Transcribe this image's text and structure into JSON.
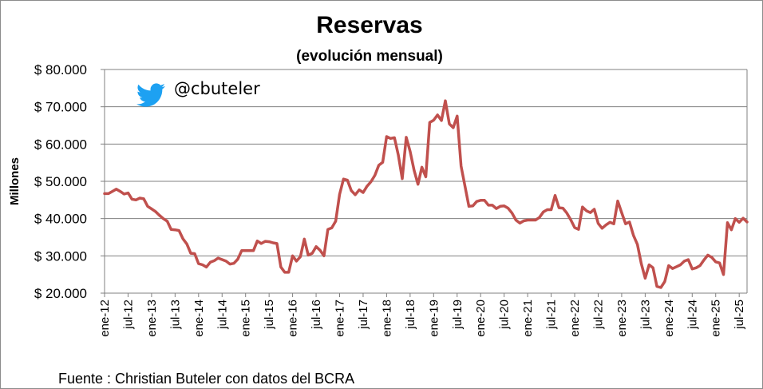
{
  "chart_data": {
    "type": "line",
    "title": "Reservas",
    "subtitle": "(evolución mensual)",
    "ylabel": "Millones",
    "ylim": [
      20000,
      80000
    ],
    "yticks": [
      20000,
      30000,
      40000,
      50000,
      60000,
      70000,
      80000
    ],
    "ytick_labels": [
      "$ 20.000",
      "$ 30.000",
      "$ 40.000",
      "$ 50.000",
      "$ 60.000",
      "$ 70.000",
      "$ 80.000"
    ],
    "xrange": [
      "2012-01",
      "2025-09"
    ],
    "xticks": [
      "2012-01",
      "2012-07",
      "2013-01",
      "2013-07",
      "2014-01",
      "2014-07",
      "2015-01",
      "2015-07",
      "2016-01",
      "2016-07",
      "2017-01",
      "2017-07",
      "2018-01",
      "2018-07",
      "2019-01",
      "2019-07",
      "2020-01",
      "2020-07",
      "2021-01",
      "2021-07",
      "2022-01",
      "2022-07",
      "2023-01",
      "2023-07",
      "2024-01",
      "2024-07",
      "2025-01",
      "2025-07"
    ],
    "xtick_labels": [
      "ene-12",
      "jul-12",
      "ene-13",
      "jul-13",
      "ene-14",
      "jul-14",
      "ene-15",
      "jul-15",
      "ene-16",
      "jul-16",
      "ene-17",
      "jul-17",
      "ene-18",
      "jul-18",
      "ene-19",
      "jul-19",
      "ene-20",
      "jul-20",
      "ene-21",
      "jul-21",
      "ene-22",
      "jul-22",
      "ene-23",
      "jul-23",
      "ene-24",
      "jul-24",
      "ene-25",
      "jul-25"
    ],
    "grid": true,
    "legend": "none",
    "series": [
      {
        "color": "#c0504d",
        "points": [
          [
            "2012-01",
            46700
          ],
          [
            "2012-02",
            46700
          ],
          [
            "2012-03",
            47300
          ],
          [
            "2012-04",
            47900
          ],
          [
            "2012-05",
            47300
          ],
          [
            "2012-06",
            46600
          ],
          [
            "2012-07",
            46900
          ],
          [
            "2012-08",
            45200
          ],
          [
            "2012-09",
            45000
          ],
          [
            "2012-10",
            45500
          ],
          [
            "2012-11",
            45300
          ],
          [
            "2012-12",
            43300
          ],
          [
            "2013-01",
            42600
          ],
          [
            "2013-02",
            41900
          ],
          [
            "2013-03",
            40900
          ],
          [
            "2013-04",
            40000
          ],
          [
            "2013-05",
            39300
          ],
          [
            "2013-06",
            37100
          ],
          [
            "2013-07",
            37000
          ],
          [
            "2013-08",
            36800
          ],
          [
            "2013-09",
            34600
          ],
          [
            "2013-10",
            33200
          ],
          [
            "2013-11",
            30700
          ],
          [
            "2013-12",
            30600
          ],
          [
            "2014-01",
            27900
          ],
          [
            "2014-02",
            27600
          ],
          [
            "2014-03",
            27000
          ],
          [
            "2014-04",
            28300
          ],
          [
            "2014-05",
            28700
          ],
          [
            "2014-06",
            29400
          ],
          [
            "2014-07",
            29000
          ],
          [
            "2014-08",
            28600
          ],
          [
            "2014-09",
            27800
          ],
          [
            "2014-10",
            28000
          ],
          [
            "2014-11",
            29100
          ],
          [
            "2014-12",
            31400
          ],
          [
            "2015-01",
            31400
          ],
          [
            "2015-02",
            31400
          ],
          [
            "2015-03",
            31400
          ],
          [
            "2015-04",
            34000
          ],
          [
            "2015-05",
            33300
          ],
          [
            "2015-06",
            33900
          ],
          [
            "2015-07",
            33800
          ],
          [
            "2015-08",
            33500
          ],
          [
            "2015-09",
            33300
          ],
          [
            "2015-10",
            27000
          ],
          [
            "2015-11",
            25600
          ],
          [
            "2015-12",
            25600
          ],
          [
            "2016-01",
            30000
          ],
          [
            "2016-02",
            28600
          ],
          [
            "2016-03",
            29800
          ],
          [
            "2016-04",
            34500
          ],
          [
            "2016-05",
            30200
          ],
          [
            "2016-06",
            30700
          ],
          [
            "2016-07",
            32500
          ],
          [
            "2016-08",
            31500
          ],
          [
            "2016-09",
            30000
          ],
          [
            "2016-10",
            37100
          ],
          [
            "2016-11",
            37500
          ],
          [
            "2016-12",
            39300
          ],
          [
            "2017-01",
            46500
          ],
          [
            "2017-02",
            50600
          ],
          [
            "2017-03",
            50300
          ],
          [
            "2017-04",
            47500
          ],
          [
            "2017-05",
            46400
          ],
          [
            "2017-06",
            47700
          ],
          [
            "2017-07",
            47000
          ],
          [
            "2017-08",
            48700
          ],
          [
            "2017-09",
            49900
          ],
          [
            "2017-10",
            51600
          ],
          [
            "2017-11",
            54300
          ],
          [
            "2017-12",
            55100
          ],
          [
            "2018-01",
            62000
          ],
          [
            "2018-02",
            61500
          ],
          [
            "2018-03",
            61700
          ],
          [
            "2018-04",
            57000
          ],
          [
            "2018-05",
            50700
          ],
          [
            "2018-06",
            61800
          ],
          [
            "2018-07",
            58000
          ],
          [
            "2018-08",
            53000
          ],
          [
            "2018-09",
            49200
          ],
          [
            "2018-10",
            53800
          ],
          [
            "2018-11",
            51200
          ],
          [
            "2018-12",
            65800
          ],
          [
            "2019-01",
            66400
          ],
          [
            "2019-02",
            67800
          ],
          [
            "2019-03",
            66300
          ],
          [
            "2019-04",
            71600
          ],
          [
            "2019-05",
            65400
          ],
          [
            "2019-06",
            64400
          ],
          [
            "2019-07",
            67500
          ],
          [
            "2019-08",
            54100
          ],
          [
            "2019-09",
            48700
          ],
          [
            "2019-10",
            43300
          ],
          [
            "2019-11",
            43400
          ],
          [
            "2019-12",
            44600
          ],
          [
            "2020-01",
            44900
          ],
          [
            "2020-02",
            44900
          ],
          [
            "2020-03",
            43600
          ],
          [
            "2020-04",
            43600
          ],
          [
            "2020-05",
            42700
          ],
          [
            "2020-06",
            43300
          ],
          [
            "2020-07",
            43400
          ],
          [
            "2020-08",
            42800
          ],
          [
            "2020-09",
            41500
          ],
          [
            "2020-10",
            39600
          ],
          [
            "2020-11",
            38800
          ],
          [
            "2020-12",
            39400
          ],
          [
            "2021-01",
            39600
          ],
          [
            "2021-02",
            39600
          ],
          [
            "2021-03",
            39600
          ],
          [
            "2021-04",
            40300
          ],
          [
            "2021-05",
            41800
          ],
          [
            "2021-06",
            42400
          ],
          [
            "2021-07",
            42400
          ],
          [
            "2021-08",
            46200
          ],
          [
            "2021-09",
            42900
          ],
          [
            "2021-10",
            42800
          ],
          [
            "2021-11",
            41500
          ],
          [
            "2021-12",
            39700
          ],
          [
            "2022-01",
            37600
          ],
          [
            "2022-02",
            37100
          ],
          [
            "2022-03",
            43100
          ],
          [
            "2022-04",
            42100
          ],
          [
            "2022-05",
            41600
          ],
          [
            "2022-06",
            42500
          ],
          [
            "2022-07",
            38700
          ],
          [
            "2022-08",
            37400
          ],
          [
            "2022-09",
            38300
          ],
          [
            "2022-10",
            39000
          ],
          [
            "2022-11",
            38600
          ],
          [
            "2022-12",
            44700
          ],
          [
            "2023-01",
            41600
          ],
          [
            "2023-02",
            38600
          ],
          [
            "2023-03",
            39100
          ],
          [
            "2023-04",
            35500
          ],
          [
            "2023-05",
            33100
          ],
          [
            "2023-06",
            27900
          ],
          [
            "2023-07",
            24000
          ],
          [
            "2023-08",
            27600
          ],
          [
            "2023-09",
            26800
          ],
          [
            "2023-10",
            21800
          ],
          [
            "2023-11",
            21500
          ],
          [
            "2023-12",
            23100
          ],
          [
            "2024-01",
            27400
          ],
          [
            "2024-02",
            26600
          ],
          [
            "2024-03",
            27100
          ],
          [
            "2024-04",
            27600
          ],
          [
            "2024-05",
            28600
          ],
          [
            "2024-06",
            29000
          ],
          [
            "2024-07",
            26500
          ],
          [
            "2024-08",
            26800
          ],
          [
            "2024-09",
            27400
          ],
          [
            "2024-10",
            28900
          ],
          [
            "2024-11",
            30200
          ],
          [
            "2024-12",
            29600
          ],
          [
            "2025-01",
            28400
          ],
          [
            "2025-02",
            28100
          ],
          [
            "2025-03",
            25000
          ],
          [
            "2025-04",
            38900
          ],
          [
            "2025-05",
            37000
          ],
          [
            "2025-06",
            40000
          ],
          [
            "2025-07",
            39000
          ],
          [
            "2025-08",
            40100
          ],
          [
            "2025-09",
            39100
          ]
        ]
      }
    ],
    "annotations": [
      {
        "icon": "twitter-bird-icon",
        "text": "@cbuteler",
        "color": "#1da1f2"
      }
    ],
    "source": "Fuente : Christian Buteler con datos del BCRA"
  }
}
